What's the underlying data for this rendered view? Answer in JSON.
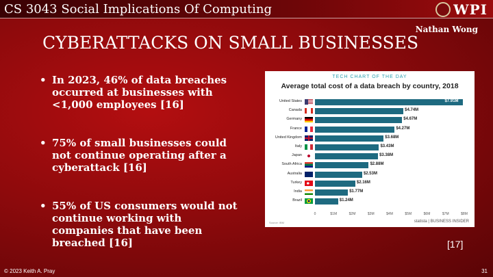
{
  "header": {
    "course_title": "CS 3043 Social Implications Of Computing",
    "logo_text": "WPI"
  },
  "author": "Nathan Wong",
  "slide_title": "CYBERATTACKS ON SMALL BUSINESSES",
  "bullets": [
    "In 2023, 46% of data breaches occurred at businesses with <1,000 employees [16]",
    "75% of small businesses could not continue operating after a cyberattack [16]",
    "55% of US consumers would not continue working with companies that have been breached [16]"
  ],
  "chart_meta": {
    "header": "TECH CHART OF THE DAY",
    "source": "Source: IBM",
    "brand": "statista | BUSINESS INSIDER"
  },
  "chart_data": {
    "type": "bar",
    "orientation": "horizontal",
    "title": "Average total cost of a data breach by country, 2018",
    "categories": [
      "United States",
      "Canada",
      "Germany",
      "France",
      "United Kingdom",
      "Italy",
      "Japan",
      "South Africa",
      "Australia",
      "Turkey",
      "India",
      "Brazil"
    ],
    "values": [
      7.91,
      4.74,
      4.67,
      4.27,
      3.68,
      3.43,
      3.38,
      2.88,
      2.53,
      2.16,
      1.77,
      1.24
    ],
    "labels": [
      "$7.91M",
      "$4.74M",
      "$4.67M",
      "$4.27M",
      "$3.68M",
      "$3.43M",
      "$3.38M",
      "$2.88M",
      "$2.53M",
      "$2.16M",
      "$1.77M",
      "$1.24M"
    ],
    "x_ticks": [
      "0",
      "$1M",
      "$2M",
      "$3M",
      "$4M",
      "$5M",
      "$6M",
      "$7M",
      "$8M"
    ],
    "xlim": [
      0,
      8
    ],
    "bar_color": "#1e6a80"
  },
  "citation": "[17]",
  "footer": {
    "copyright": "© 2023 Keith A. Pray",
    "page_number": "31"
  }
}
